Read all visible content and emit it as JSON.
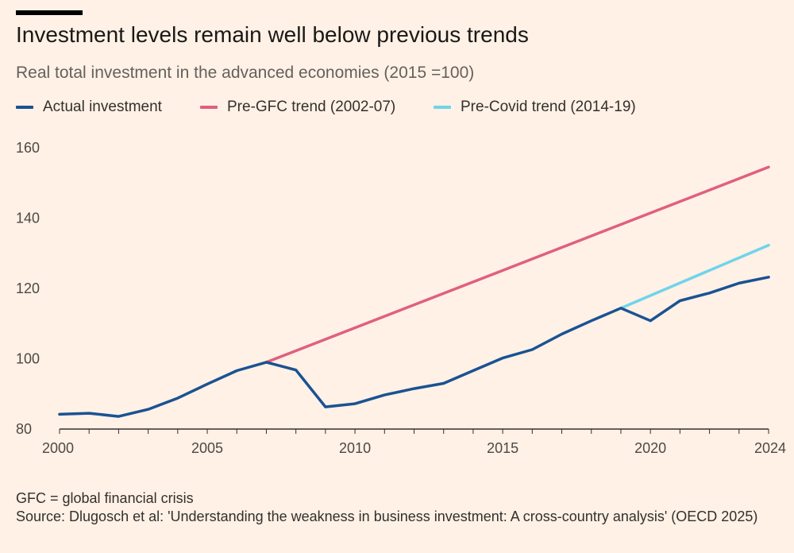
{
  "header": {
    "title": "Investment levels remain well below previous trends",
    "subtitle": "Real total investment in the advanced economies (2015 =100)"
  },
  "colors": {
    "actual": "#1a5293",
    "pre_gfc": "#e0607e",
    "pre_covid": "#6fd4ec",
    "axis": "#4d4845",
    "gridline": "#e3d8cd"
  },
  "chart_data": {
    "type": "line",
    "title": "Investment levels remain well below previous trends",
    "subtitle": "Real total investment in the advanced economies (2015 =100)",
    "xlabel": "",
    "ylabel": "",
    "xlim": [
      2000,
      2024
    ],
    "ylim": [
      80,
      160
    ],
    "x_ticks": [
      2000,
      2005,
      2010,
      2015,
      2020,
      2024
    ],
    "y_ticks": [
      80,
      100,
      120,
      140,
      160
    ],
    "grid": false,
    "legend": "top-left",
    "series": [
      {
        "name": "Actual investment",
        "key": "actual",
        "x": [
          2000,
          2001,
          2002,
          2003,
          2004,
          2005,
          2006,
          2007,
          2008,
          2009,
          2010,
          2011,
          2012,
          2013,
          2014,
          2015,
          2016,
          2017,
          2018,
          2019,
          2020,
          2021,
          2022,
          2023,
          2024
        ],
        "values": [
          84.2,
          84.5,
          83.6,
          85.6,
          88.8,
          92.8,
          96.6,
          99,
          96.8,
          86.3,
          87.2,
          89.7,
          91.5,
          93,
          96.6,
          100.2,
          102.6,
          107,
          110.8,
          114.4,
          110.8,
          116.5,
          118.7,
          121.5,
          123.2
        ]
      },
      {
        "name": "Pre-GFC trend (2002-07)",
        "key": "pre_gfc",
        "x": [
          2007,
          2024
        ],
        "values": [
          99,
          154.5
        ]
      },
      {
        "name": "Pre-Covid trend (2014-19)",
        "key": "pre_covid",
        "x": [
          2019,
          2024
        ],
        "values": [
          114.4,
          132.3
        ]
      }
    ]
  },
  "footer": {
    "note": "GFC = global financial crisis",
    "source": "Source: Dlugosch et al: 'Understanding the weakness in business investment: A cross-country analysis' (OECD 2025)"
  }
}
